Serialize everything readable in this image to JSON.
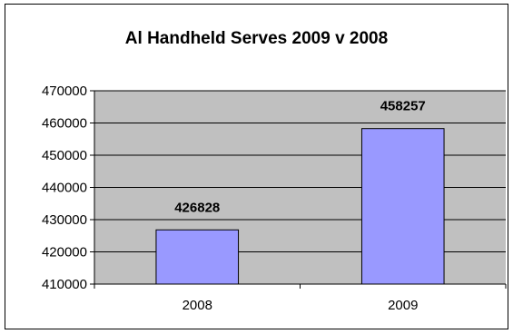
{
  "chart_data": {
    "type": "bar",
    "title": "Al Handheld Serves 2009 v 2008",
    "xlabel": "",
    "ylabel": "",
    "categories": [
      "2008",
      "2009"
    ],
    "values": [
      426828,
      458257
    ],
    "data_labels": [
      "426828",
      "458257"
    ],
    "ylim": [
      410000,
      470000
    ],
    "yticks": [
      "410000",
      "420000",
      "430000",
      "440000",
      "450000",
      "460000",
      "470000"
    ],
    "grid": true,
    "legend": "none",
    "colors": {
      "plot_background": "#c0c0c0",
      "bar_fill": "#9999ff",
      "bar_border": "#000000",
      "gridline": "#000000"
    }
  }
}
